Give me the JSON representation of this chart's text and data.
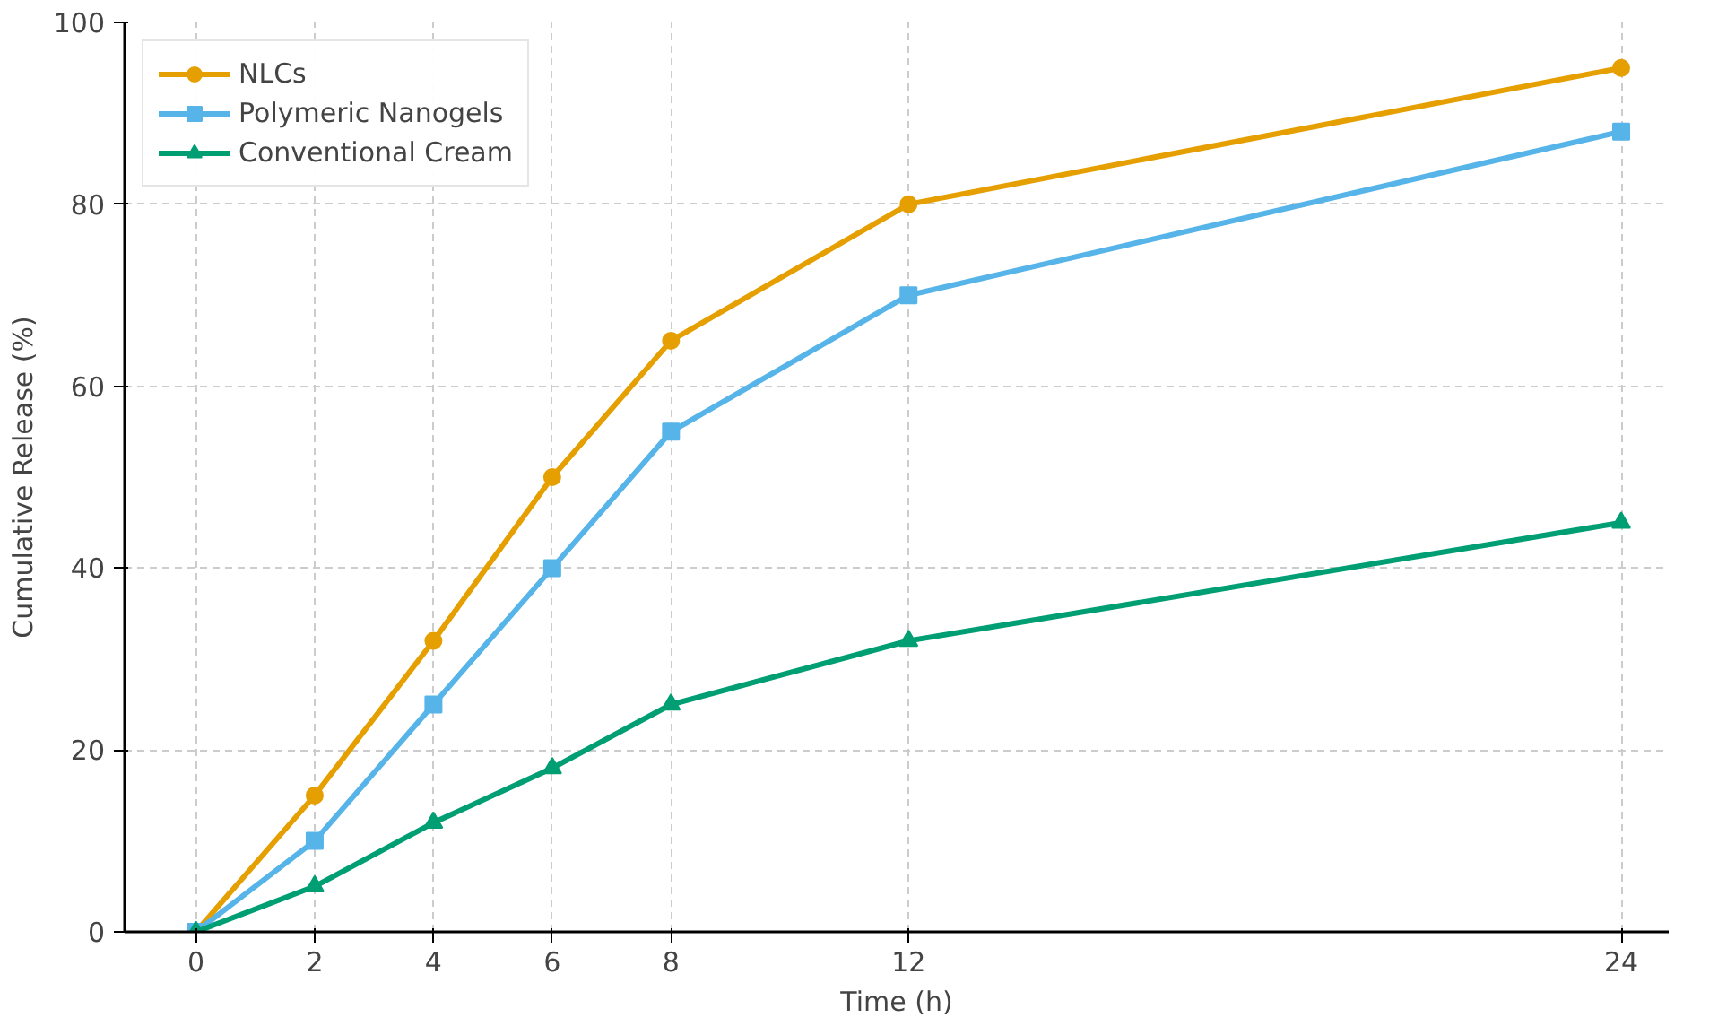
{
  "chart_data": {
    "type": "line",
    "xlabel": "Time (h)",
    "ylabel": "Cumulative Release (%)",
    "x": [
      0,
      2,
      4,
      6,
      8,
      12,
      24
    ],
    "series": [
      {
        "name": "NLCs",
        "color": "#e69f00",
        "marker": "circle",
        "values": [
          0,
          15,
          32,
          50,
          65,
          80,
          95
        ]
      },
      {
        "name": "Polymeric Nanogels",
        "color": "#56b4e9",
        "marker": "square",
        "values": [
          0,
          10,
          25,
          40,
          55,
          70,
          88
        ]
      },
      {
        "name": "Conventional Cream",
        "color": "#009e73",
        "marker": "triangle",
        "values": [
          0,
          5,
          12,
          18,
          25,
          32,
          45
        ]
      }
    ],
    "xlim": [
      -1.2,
      24.8
    ],
    "ylim": [
      0,
      100
    ],
    "xticks": [
      0,
      2,
      4,
      6,
      8,
      12,
      24
    ],
    "yticks": [
      0,
      20,
      40,
      60,
      80,
      100
    ],
    "grid": true,
    "legend": "top left",
    "line_style": "solid"
  }
}
